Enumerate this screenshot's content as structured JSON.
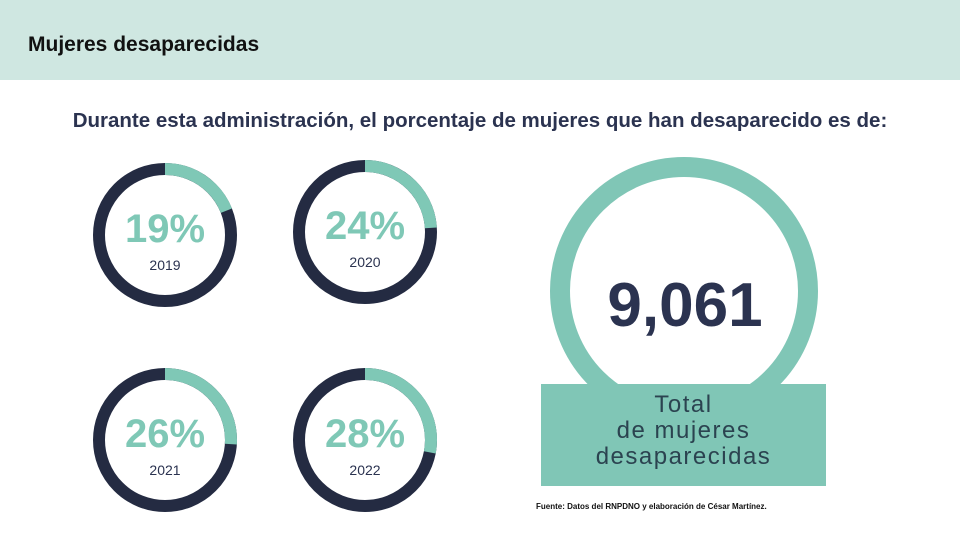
{
  "header": {
    "title": "Mujeres desaparecidas"
  },
  "subtitle": "Durante esta administración, el porcentaje de mujeres que han desaparecido es de:",
  "colors": {
    "accent": "#7fc8b6",
    "dark": "#242b42",
    "header_bg": "#cfe7e1"
  },
  "chart_data": {
    "type": "donut",
    "title": "Durante esta administración, el porcentaje de mujeres que han desaparecido es de:",
    "categories": [
      "2019",
      "2020",
      "2021",
      "2022"
    ],
    "values": [
      19,
      24,
      26,
      28
    ],
    "labels": [
      "19%",
      "24%",
      "26%",
      "28%"
    ],
    "unit": "%"
  },
  "total": {
    "value": "9,061",
    "label": "Total\nde mujeres\ndesaparecidas"
  },
  "source": "Fuente: Datos del RNPDNO y elaboración de César Martínez."
}
